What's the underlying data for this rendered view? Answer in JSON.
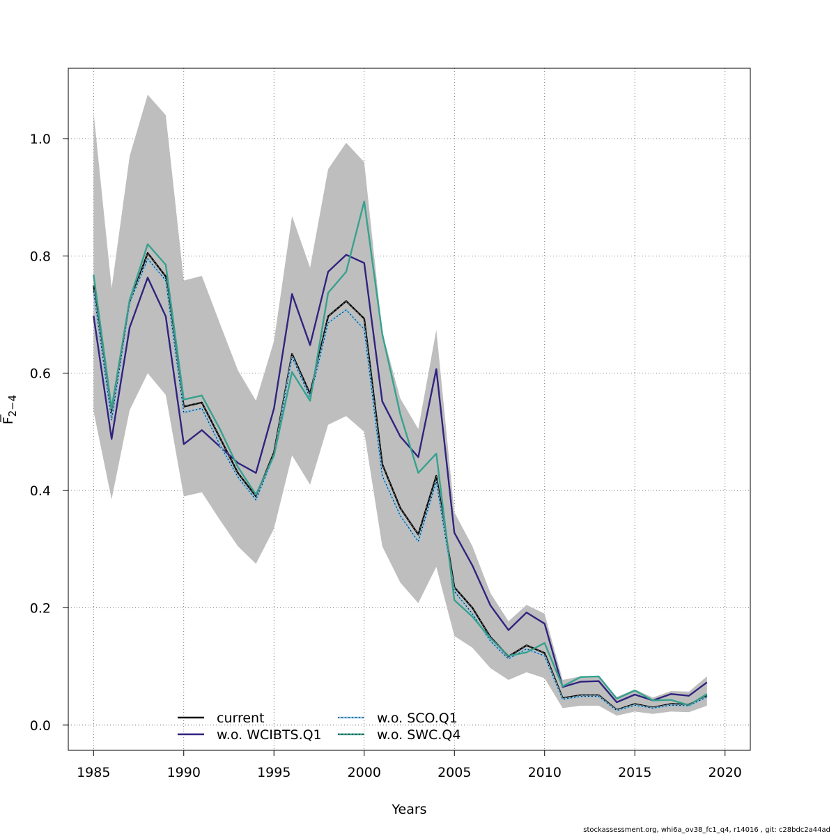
{
  "chart_data": {
    "type": "line",
    "title": "",
    "xlabel": "Years",
    "ylabel_main": "F",
    "ylabel_sub": "2−4",
    "xlim": [
      1983.6,
      2021.4
    ],
    "ylim": [
      -0.043,
      1.12
    ],
    "xticks": [
      1985,
      1990,
      1995,
      2000,
      2005,
      2010,
      2015,
      2020
    ],
    "yticks": [
      0.0,
      0.2,
      0.4,
      0.6,
      0.8,
      1.0
    ],
    "xtick_labels": [
      "1985",
      "1990",
      "1995",
      "2000",
      "2005",
      "2010",
      "2015",
      "2020"
    ],
    "ytick_labels": [
      "0.0",
      "0.2",
      "0.4",
      "0.6",
      "0.8",
      "1.0"
    ],
    "grid": true,
    "legend_position": "bottom-left",
    "x": [
      1985,
      1986,
      1987,
      1988,
      1989,
      1990,
      1991,
      1992,
      1993,
      1994,
      1995,
      1996,
      1997,
      1998,
      1999,
      2000,
      2001,
      2002,
      2003,
      2004,
      2005,
      2006,
      2007,
      2008,
      2009,
      2010,
      2011,
      2012,
      2013,
      2014,
      2015,
      2016,
      2017,
      2018,
      2019
    ],
    "band": {
      "upper": [
        1.045,
        0.745,
        0.97,
        1.075,
        1.04,
        0.758,
        0.766,
        0.685,
        0.605,
        0.553,
        0.655,
        0.868,
        0.78,
        0.948,
        0.993,
        0.96,
        0.67,
        0.557,
        0.505,
        0.674,
        0.363,
        0.305,
        0.225,
        0.177,
        0.205,
        0.19,
        0.077,
        0.083,
        0.083,
        0.048,
        0.061,
        0.047,
        0.058,
        0.057,
        0.083
      ],
      "lower": [
        0.535,
        0.385,
        0.537,
        0.6,
        0.563,
        0.39,
        0.397,
        0.35,
        0.305,
        0.275,
        0.335,
        0.46,
        0.41,
        0.512,
        0.527,
        0.5,
        0.305,
        0.243,
        0.208,
        0.27,
        0.152,
        0.132,
        0.097,
        0.077,
        0.09,
        0.08,
        0.029,
        0.033,
        0.033,
        0.016,
        0.023,
        0.019,
        0.023,
        0.022,
        0.033
      ]
    },
    "series": [
      {
        "name": "current",
        "color": "#000000",
        "style": "solid",
        "values": [
          0.75,
          0.53,
          0.72,
          0.805,
          0.765,
          0.543,
          0.55,
          0.49,
          0.43,
          0.39,
          0.465,
          0.633,
          0.565,
          0.697,
          0.723,
          0.693,
          0.445,
          0.37,
          0.325,
          0.425,
          0.235,
          0.2,
          0.15,
          0.117,
          0.136,
          0.123,
          0.046,
          0.051,
          0.051,
          0.026,
          0.036,
          0.03,
          0.036,
          0.035,
          0.05
        ]
      },
      {
        "name": "w.o. WCIBTS.Q1",
        "color": "#2f237f",
        "style": "solid",
        "values": [
          0.698,
          0.488,
          0.678,
          0.763,
          0.697,
          0.479,
          0.503,
          0.475,
          0.447,
          0.43,
          0.54,
          0.735,
          0.648,
          0.773,
          0.802,
          0.788,
          0.552,
          0.492,
          0.457,
          0.607,
          0.328,
          0.272,
          0.204,
          0.162,
          0.192,
          0.173,
          0.065,
          0.074,
          0.075,
          0.039,
          0.052,
          0.042,
          0.053,
          0.05,
          0.073
        ]
      },
      {
        "name": "w.o. SCO.Q1",
        "color": "#7ec3ec",
        "style": "dotted",
        "values": [
          0.74,
          0.52,
          0.72,
          0.795,
          0.758,
          0.533,
          0.54,
          0.478,
          0.423,
          0.384,
          0.46,
          0.628,
          0.558,
          0.686,
          0.708,
          0.675,
          0.425,
          0.357,
          0.313,
          0.415,
          0.228,
          0.19,
          0.143,
          0.113,
          0.13,
          0.118,
          0.044,
          0.049,
          0.049,
          0.025,
          0.034,
          0.029,
          0.034,
          0.033,
          0.048
        ]
      },
      {
        "name": "w.o. SWC.Q4",
        "color": "#36a28e",
        "style": "solid",
        "values": [
          0.768,
          0.54,
          0.725,
          0.82,
          0.785,
          0.555,
          0.562,
          0.505,
          0.44,
          0.393,
          0.46,
          0.602,
          0.553,
          0.737,
          0.773,
          0.893,
          0.667,
          0.53,
          0.43,
          0.463,
          0.213,
          0.185,
          0.148,
          0.118,
          0.124,
          0.14,
          0.066,
          0.082,
          0.083,
          0.045,
          0.059,
          0.042,
          0.043,
          0.034,
          0.053
        ]
      }
    ],
    "band_color": "#bebebe"
  },
  "footer": {
    "text": "stockassessment.org, whi6a_ov38_fc1_q4, r14016 , git: c28bdc2a44ad"
  }
}
